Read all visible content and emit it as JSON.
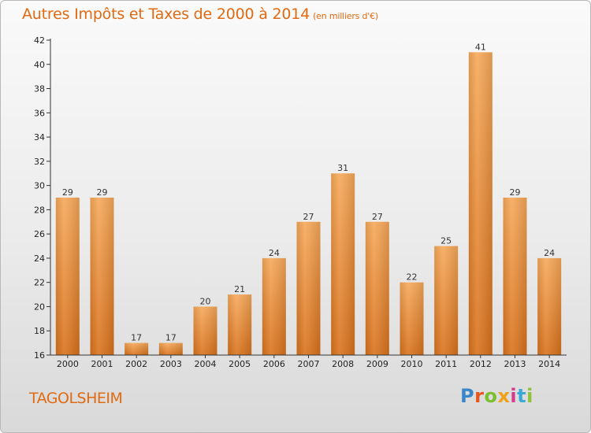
{
  "chart_data": {
    "type": "bar",
    "title": "Autres Impôts et Taxes de 2000 à 2014",
    "subtitle": "(en milliers d'€)",
    "categories": [
      "2000",
      "2001",
      "2002",
      "2003",
      "2004",
      "2005",
      "2006",
      "2007",
      "2008",
      "2009",
      "2010",
      "2011",
      "2012",
      "2013",
      "2014"
    ],
    "values": [
      29,
      29,
      17,
      17,
      20,
      21,
      24,
      27,
      31,
      27,
      22,
      25,
      41,
      29,
      24
    ],
    "ylim": [
      16,
      42
    ],
    "yticks": [
      16,
      18,
      20,
      22,
      24,
      26,
      28,
      30,
      32,
      34,
      36,
      38,
      40,
      42
    ],
    "xlabel": "",
    "ylabel": "",
    "grid": false,
    "bar_color": "#f08a2a"
  },
  "footer": {
    "city": "TAGOLSHEIM",
    "brand": "Proxiti"
  },
  "colors": {
    "accent": "#e06a12",
    "brand_letters": [
      "#3a86c8",
      "#e8561e",
      "#7bbf2e",
      "#f0a11a",
      "#d63a8c",
      "#3aa8d6",
      "#8fc23b"
    ]
  }
}
